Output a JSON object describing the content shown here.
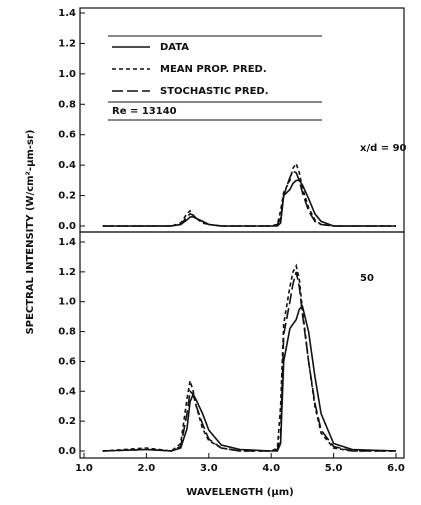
{
  "chart_data": [
    {
      "type": "line",
      "ylabel": "SPECTRAL INTENSITY (W/cm²-μm-sr)",
      "annotations": [
        "Re = 13140",
        "x/d = 90"
      ],
      "xlim": [
        1.0,
        6.0
      ],
      "ylim": [
        0,
        1.4
      ],
      "yticks": [
        {
          "value": 0,
          "label": "0.0"
        },
        0.2,
        0.4,
        0.6,
        0.8,
        {
          "value": 1,
          "label": "1.0"
        },
        1.2,
        1.4
      ],
      "x": [
        1.3,
        2.0,
        2.4,
        2.55,
        2.65,
        2.7,
        2.75,
        2.8,
        2.9,
        3.0,
        3.2,
        3.5,
        4.0,
        4.1,
        4.15,
        4.2,
        4.3,
        4.35,
        4.4,
        4.45,
        4.5,
        4.6,
        4.7,
        4.8,
        5.0,
        5.3,
        6.0
      ],
      "series": [
        {
          "name": "DATA",
          "color": "#111111",
          "style": "solid",
          "values": [
            0,
            0,
            0,
            0.01,
            0.04,
            0.06,
            0.06,
            0.05,
            0.03,
            0.01,
            0,
            0,
            0,
            0,
            0.02,
            0.2,
            0.24,
            0.28,
            0.3,
            0.3,
            0.27,
            0.18,
            0.08,
            0.03,
            0,
            0,
            0
          ]
        },
        {
          "name": "MEAN PROP. PRED.",
          "color": "#111111",
          "style": "short-dash",
          "values": [
            0,
            0,
            0,
            0.02,
            0.08,
            0.1,
            0.07,
            0.05,
            0.02,
            0.01,
            0,
            0,
            0,
            0.01,
            0.1,
            0.22,
            0.3,
            0.38,
            0.41,
            0.35,
            0.25,
            0.12,
            0.04,
            0.01,
            0,
            0,
            0
          ]
        },
        {
          "name": "STOCHASTIC PRED.",
          "color": "#111111",
          "style": "long-dash",
          "values": [
            0,
            0,
            0,
            0.01,
            0.06,
            0.08,
            0.07,
            0.05,
            0.03,
            0.01,
            0,
            0,
            0,
            0.01,
            0.05,
            0.2,
            0.32,
            0.36,
            0.35,
            0.3,
            0.22,
            0.1,
            0.03,
            0.01,
            0,
            0,
            0
          ]
        }
      ]
    },
    {
      "type": "line",
      "xlabel": "WAVELENGTH (μm)",
      "annotations": [
        "50"
      ],
      "xlim": [
        1.0,
        6.0
      ],
      "xticks": [
        {
          "value": 1,
          "label": "1.0"
        },
        {
          "value": 2,
          "label": "2.0"
        },
        {
          "value": 3,
          "label": "3.0"
        },
        {
          "value": 4,
          "label": "4.0"
        },
        {
          "value": 5,
          "label": "5.0"
        },
        {
          "value": 6,
          "label": "6.0"
        }
      ],
      "ylim": [
        0,
        1.4
      ],
      "yticks": [
        {
          "value": 0,
          "label": "0.0"
        },
        0.2,
        0.4,
        0.6,
        0.8,
        {
          "value": 1,
          "label": "1.0"
        },
        1.2,
        1.4
      ],
      "x": [
        1.3,
        2.0,
        2.4,
        2.55,
        2.65,
        2.7,
        2.75,
        2.8,
        2.9,
        3.0,
        3.2,
        3.5,
        4.0,
        4.1,
        4.15,
        4.2,
        4.3,
        4.35,
        4.4,
        4.45,
        4.5,
        4.6,
        4.7,
        4.8,
        5.0,
        5.3,
        6.0
      ],
      "series": [
        {
          "color": "#111111",
          "style": "solid",
          "values": [
            0,
            0.01,
            0,
            0.02,
            0.15,
            0.33,
            0.38,
            0.34,
            0.25,
            0.14,
            0.04,
            0.01,
            0,
            0,
            0.05,
            0.6,
            0.82,
            0.85,
            0.88,
            0.95,
            0.97,
            0.8,
            0.5,
            0.25,
            0.05,
            0.01,
            0
          ]
        },
        {
          "color": "#111111",
          "style": "short-dash",
          "values": [
            0,
            0.02,
            0,
            0.05,
            0.35,
            0.47,
            0.4,
            0.3,
            0.15,
            0.07,
            0.02,
            0,
            0,
            0.02,
            0.3,
            0.85,
            1.1,
            1.2,
            1.24,
            1.15,
            0.95,
            0.6,
            0.3,
            0.12,
            0.02,
            0,
            0
          ]
        },
        {
          "color": "#111111",
          "style": "long-dash",
          "values": [
            0,
            0.01,
            0,
            0.03,
            0.25,
            0.4,
            0.38,
            0.3,
            0.18,
            0.08,
            0.02,
            0,
            0,
            0.01,
            0.1,
            0.78,
            1.0,
            1.12,
            1.2,
            1.1,
            0.92,
            0.6,
            0.32,
            0.14,
            0.03,
            0,
            0
          ]
        }
      ]
    }
  ]
}
